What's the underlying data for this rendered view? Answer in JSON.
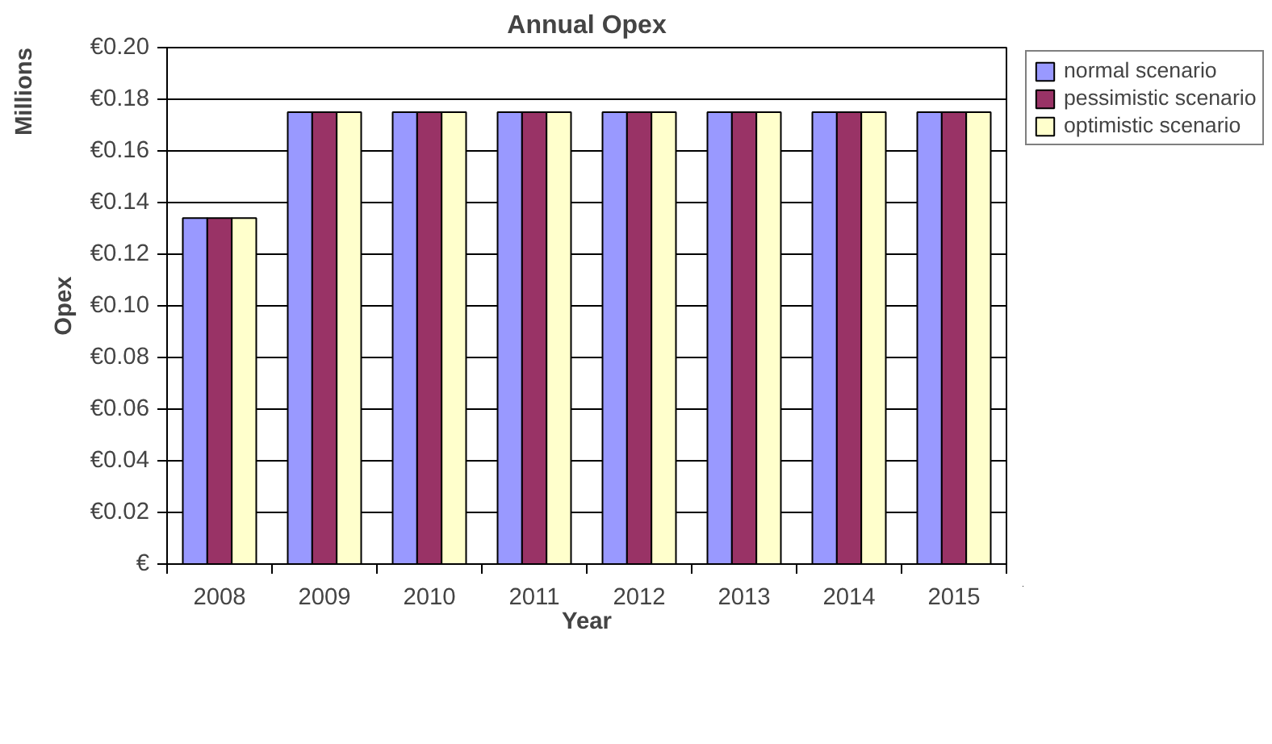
{
  "chart_data": {
    "type": "bar",
    "title": "Annual Opex",
    "xlabel": "Year",
    "ylabel": "Opex",
    "annotations": [
      "Millions"
    ],
    "categories": [
      "2008",
      "2009",
      "2010",
      "2011",
      "2012",
      "2013",
      "2014",
      "2015"
    ],
    "series": [
      {
        "name": "normal scenario",
        "color": "#9999ff",
        "values": [
          0.134,
          0.175,
          0.175,
          0.175,
          0.175,
          0.175,
          0.175,
          0.175
        ]
      },
      {
        "name": "pessimistic scenario",
        "color": "#993366",
        "values": [
          0.134,
          0.175,
          0.175,
          0.175,
          0.175,
          0.175,
          0.175,
          0.175
        ]
      },
      {
        "name": "optimistic scenario",
        "color": "#ffffcc",
        "values": [
          0.134,
          0.175,
          0.175,
          0.175,
          0.175,
          0.175,
          0.175,
          0.175
        ]
      }
    ],
    "ylim": [
      0,
      0.2
    ],
    "yticks": [
      {
        "value": 0,
        "label": "€"
      },
      {
        "value": 0.02,
        "label": "€0.02"
      },
      {
        "value": 0.04,
        "label": "€0.04"
      },
      {
        "value": 0.06,
        "label": "€0.06"
      },
      {
        "value": 0.08,
        "label": "€0.08"
      },
      {
        "value": 0.1,
        "label": "€0.10"
      },
      {
        "value": 0.12,
        "label": "€0.12"
      },
      {
        "value": 0.14,
        "label": "€0.14"
      },
      {
        "value": 0.16,
        "label": "€0.16"
      },
      {
        "value": 0.18,
        "label": "€0.18"
      },
      {
        "value": 0.2,
        "label": "€0.20"
      }
    ],
    "grid": "y",
    "legend": "top right"
  }
}
